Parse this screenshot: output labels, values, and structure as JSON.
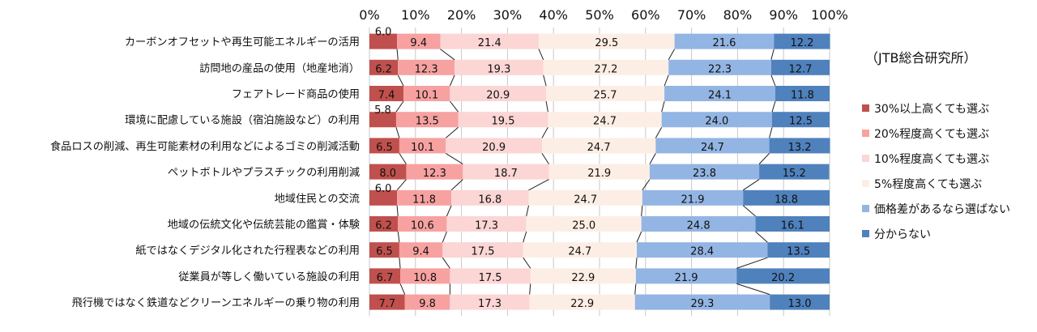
{
  "source_note": "（JTB総合研究所）",
  "chart_data": {
    "type": "bar",
    "orientation": "horizontal",
    "stacked": "percent",
    "title": "",
    "xlabel": "",
    "ylabel": "",
    "xlim": [
      0,
      100
    ],
    "x_ticks": [
      "0%",
      "10%",
      "20%",
      "30%",
      "40%",
      "50%",
      "60%",
      "70%",
      "80%",
      "90%",
      "100%"
    ],
    "grid": true,
    "legend_position": "right",
    "categories": [
      "カーボンオフセットや再生可能エネルギーの活用",
      "訪問地の産品の使用（地産地消）",
      "フェアトレード商品の使用",
      "環境に配慮している施設（宿泊施設など）の利用",
      "食品ロスの削減、再生可能素材の利用などによるゴミの削減活動",
      "ペットボトルやプラスチックの利用削減",
      "地域住民との交流",
      "地域の伝統文化や伝統芸能の鑑賞・体験",
      "紙ではなくデジタル化された行程表などの利用",
      "従業員が等しく働いている施設の利用",
      "飛行機ではなく鉄道などクリーンエネルギーの乗り物の利用"
    ],
    "series": [
      {
        "name": "30%以上高くても選ぶ",
        "color": "#c0504d",
        "values": [
          6.0,
          6.2,
          7.4,
          5.8,
          6.5,
          8.0,
          6.0,
          6.2,
          6.5,
          6.7,
          7.7
        ]
      },
      {
        "name": "20%程度高くても選ぶ",
        "color": "#f7a1a1",
        "values": [
          9.4,
          12.3,
          10.1,
          13.5,
          10.1,
          12.3,
          11.8,
          10.6,
          9.4,
          10.8,
          9.8
        ]
      },
      {
        "name": "10%程度高くても選ぶ",
        "color": "#fcd5d5",
        "values": [
          21.4,
          19.3,
          20.9,
          19.5,
          20.9,
          18.7,
          16.8,
          17.3,
          17.5,
          17.5,
          17.3
        ]
      },
      {
        "name": "5%程度高くても選ぶ",
        "color": "#fdeee5",
        "values": [
          29.5,
          27.2,
          25.7,
          24.7,
          24.7,
          21.9,
          24.7,
          25.0,
          24.7,
          22.9,
          22.9
        ]
      },
      {
        "name": "価格差があるなら選ばない",
        "color": "#93b5e3",
        "values": [
          21.6,
          22.3,
          24.1,
          24.0,
          24.7,
          23.8,
          21.9,
          24.8,
          28.4,
          21.9,
          29.3
        ]
      },
      {
        "name": "分からない",
        "color": "#4f81bd",
        "values": [
          12.2,
          12.7,
          11.8,
          12.5,
          13.2,
          15.2,
          18.8,
          16.1,
          13.5,
          20.2,
          13.0
        ]
      }
    ]
  }
}
